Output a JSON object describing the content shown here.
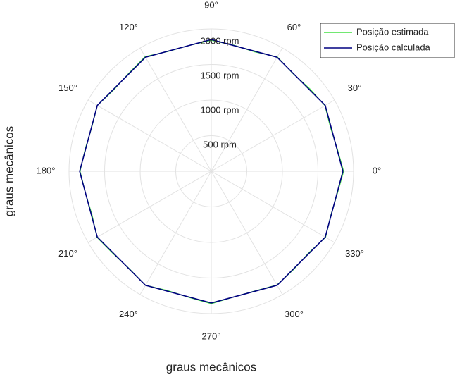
{
  "chart_data": {
    "type": "polar",
    "xlabel": "graus mecânicos",
    "ylabel": "graus mecânicos",
    "rlim": [
      0,
      2000
    ],
    "rticks": [
      {
        "value": 500,
        "label": "500 rpm"
      },
      {
        "value": 1000,
        "label": "1000 rpm"
      },
      {
        "value": 1500,
        "label": "1500 rpm"
      },
      {
        "value": 2000,
        "label": "2000 rpm"
      }
    ],
    "thetaticks": [
      {
        "value": 0,
        "label": "0°"
      },
      {
        "value": 30,
        "label": "30°"
      },
      {
        "value": 60,
        "label": "60°"
      },
      {
        "value": 90,
        "label": "90°"
      },
      {
        "value": 120,
        "label": "120°"
      },
      {
        "value": 150,
        "label": "150°"
      },
      {
        "value": 180,
        "label": "180°"
      },
      {
        "value": 210,
        "label": "210°"
      },
      {
        "value": 240,
        "label": "240°"
      },
      {
        "value": 270,
        "label": "270°"
      },
      {
        "value": 300,
        "label": "300°"
      },
      {
        "value": 330,
        "label": "330°"
      }
    ],
    "grid": true,
    "legend": "upper right",
    "series": [
      {
        "name": "Posição estimada",
        "color": "#44e044",
        "theta": [
          0,
          10,
          20,
          30,
          40,
          50,
          60,
          70,
          80,
          90,
          100,
          110,
          120,
          130,
          140,
          150,
          160,
          170,
          180,
          190,
          200,
          210,
          220,
          230,
          240,
          250,
          260,
          270,
          280,
          290,
          300,
          310,
          320,
          330,
          340,
          350,
          360
        ],
        "r": [
          1860,
          1800,
          1785,
          1845,
          1805,
          1790,
          1855,
          1785,
          1800,
          1840,
          1795,
          1790,
          1860,
          1800,
          1785,
          1850,
          1790,
          1800,
          1845,
          1795,
          1785,
          1855,
          1800,
          1790,
          1850,
          1785,
          1800,
          1860,
          1795,
          1790,
          1845,
          1800,
          1785,
          1855,
          1790,
          1800,
          1860
        ]
      },
      {
        "name": "Posição calculada",
        "color": "#000080",
        "theta": [
          0,
          30,
          60,
          90,
          120,
          150,
          180,
          210,
          240,
          270,
          300,
          330,
          360
        ],
        "r": [
          1850,
          1850,
          1850,
          1850,
          1850,
          1850,
          1850,
          1850,
          1850,
          1850,
          1850,
          1850,
          1850
        ]
      }
    ]
  }
}
